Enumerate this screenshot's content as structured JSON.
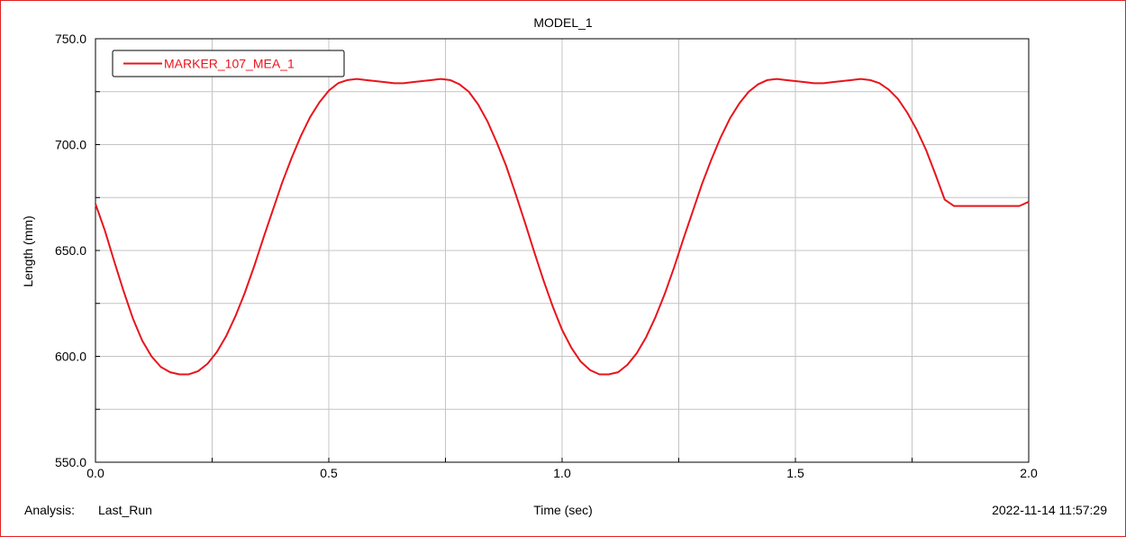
{
  "chart_data": {
    "type": "line",
    "title": "MODEL_1",
    "xlabel": "Time (sec)",
    "ylabel": "Length (mm)",
    "xlim": [
      0.0,
      2.0
    ],
    "ylim": [
      550.0,
      750.0
    ],
    "x_ticks": [
      0.0,
      0.5,
      1.0,
      1.5,
      2.0
    ],
    "x_tick_labels": [
      "0.0",
      "0.5",
      "1.0",
      "1.5",
      "2.0"
    ],
    "y_ticks": [
      550.0,
      600.0,
      650.0,
      700.0,
      750.0
    ],
    "y_tick_labels": [
      "550.0",
      "600.0",
      "650.0",
      "700.0",
      "750.0"
    ],
    "grid": true,
    "legend_position": "top-left",
    "footer": {
      "analysis_label": "Analysis:",
      "analysis_name": "Last_Run",
      "timestamp": "2022-11-14 11:57:29"
    },
    "series": [
      {
        "name": "MARKER_107_MEA_1",
        "color": "#e8141c",
        "x": [
          0.0,
          0.02,
          0.04,
          0.06,
          0.08,
          0.1,
          0.12,
          0.14,
          0.16,
          0.18,
          0.2,
          0.22,
          0.24,
          0.26,
          0.28,
          0.3,
          0.32,
          0.34,
          0.36,
          0.38,
          0.4,
          0.42,
          0.44,
          0.46,
          0.48,
          0.5,
          0.52,
          0.54,
          0.56,
          0.58,
          0.6,
          0.62,
          0.64,
          0.66,
          0.68,
          0.7,
          0.72,
          0.74,
          0.76,
          0.78,
          0.8,
          0.82,
          0.84,
          0.86,
          0.88,
          0.9,
          0.92,
          0.94,
          0.96,
          0.98,
          1.0,
          1.02,
          1.04,
          1.06,
          1.08,
          1.1,
          1.12,
          1.14,
          1.16,
          1.18,
          1.2,
          1.22,
          1.24,
          1.26,
          1.28,
          1.3,
          1.32,
          1.34,
          1.36,
          1.38,
          1.4,
          1.42,
          1.44,
          1.46,
          1.48,
          1.5,
          1.52,
          1.54,
          1.56,
          1.58,
          1.6,
          1.62,
          1.64,
          1.66,
          1.68,
          1.7,
          1.72,
          1.74,
          1.76,
          1.78,
          1.8,
          1.82,
          1.84,
          1.86,
          1.88,
          1.9,
          1.92,
          1.94,
          1.96,
          1.98,
          2.0
        ],
        "values": [
          672.0,
          659.5,
          645.0,
          631.0,
          618.0,
          607.5,
          600.0,
          595.0,
          592.5,
          591.5,
          591.5,
          593.0,
          596.5,
          602.0,
          609.5,
          619.0,
          630.0,
          642.5,
          656.0,
          669.0,
          682.0,
          693.5,
          704.0,
          713.0,
          720.0,
          725.5,
          729.0,
          730.5,
          731.0,
          730.5,
          730.0,
          729.5,
          729.0,
          729.0,
          729.5,
          730.0,
          730.5,
          731.0,
          730.5,
          728.5,
          725.0,
          719.0,
          711.0,
          701.0,
          690.0,
          677.0,
          663.5,
          649.5,
          636.0,
          623.5,
          612.5,
          604.0,
          597.5,
          593.5,
          591.5,
          591.5,
          592.5,
          596.0,
          601.5,
          609.0,
          618.5,
          629.5,
          642.0,
          655.5,
          668.5,
          681.5,
          693.0,
          703.5,
          712.5,
          719.5,
          725.0,
          728.5,
          730.5,
          731.0,
          730.5,
          730.0,
          729.5,
          729.0,
          729.0,
          729.5,
          730.0,
          730.5,
          731.0,
          730.5,
          729.0,
          726.0,
          721.5,
          715.0,
          707.0,
          697.5,
          686.0,
          674.0,
          671.0,
          671.0,
          671.0,
          671.0,
          671.0,
          671.0,
          671.0,
          671.0,
          673.0
        ]
      }
    ]
  }
}
